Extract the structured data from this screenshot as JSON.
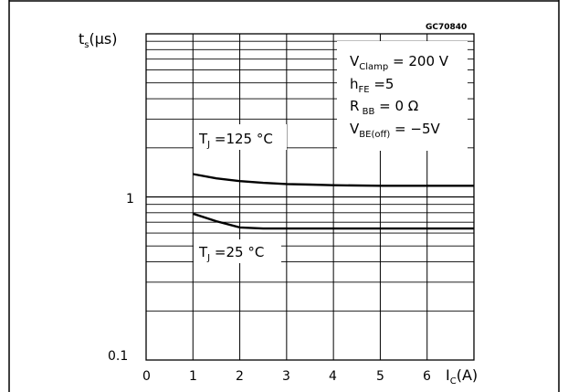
{
  "chart_data": {
    "type": "line",
    "code": "GC70840",
    "y_axis": {
      "symbol": "t",
      "subscript": "s",
      "unit": "(µs)",
      "scale": "log",
      "ylim": [
        0.1,
        10
      ],
      "tick_labels": [
        "1",
        "0.1"
      ]
    },
    "x_axis": {
      "symbol": "I",
      "subscript": "C",
      "unit": "(A)",
      "xlim": [
        0,
        7
      ],
      "tick_labels": [
        "0",
        "1",
        "2",
        "3",
        "4",
        "5",
        "6"
      ]
    },
    "conditions": [
      {
        "main": "V",
        "sub": "Clamp",
        "rest": " = 200 V"
      },
      {
        "main": "h",
        "sub": "FE",
        "rest": " =5"
      },
      {
        "main": "R",
        "sub": " BB",
        "rest": " = 0 Ω"
      },
      {
        "main": "V",
        "sub": "BE(off)",
        "rest": " = −5V"
      }
    ],
    "series": [
      {
        "main": "T",
        "sub": "J",
        "rest": " =125 °C",
        "x": [
          1,
          1.5,
          2,
          2.5,
          3,
          3.5,
          4,
          5,
          6,
          7
        ],
        "y": [
          1.38,
          1.3,
          1.25,
          1.22,
          1.2,
          1.19,
          1.18,
          1.17,
          1.17,
          1.17
        ]
      },
      {
        "main": "T",
        "sub": "J",
        "rest": " =25 °C",
        "x": [
          1,
          1.5,
          2,
          2.5,
          3,
          4,
          5,
          6,
          7
        ],
        "y": [
          0.79,
          0.71,
          0.65,
          0.64,
          0.64,
          0.64,
          0.64,
          0.64,
          0.64
        ]
      }
    ],
    "grid": true
  }
}
